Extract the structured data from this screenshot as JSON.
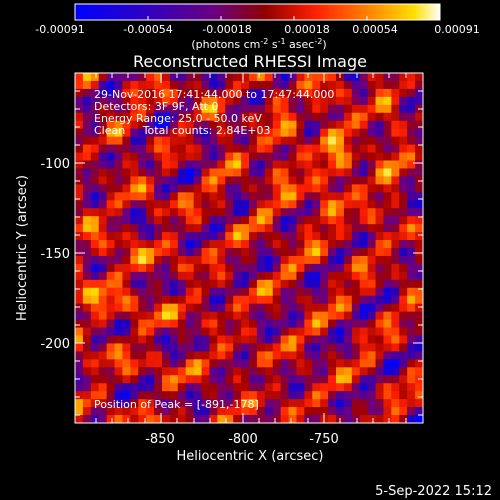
{
  "colorbar": {
    "tick_labels": [
      "-0.00091",
      "-0.00054",
      "-0.00018",
      "0.00018",
      "0.00054",
      "0.00091"
    ],
    "units_parts": [
      "(photons cm",
      "-2",
      " s",
      "-1",
      " asec",
      "-2",
      ")"
    ]
  },
  "chart_data": {
    "type": "heatmap",
    "title": "Reconstructed RHESSI Image",
    "xlabel": "Heliocentric X (arcsec)",
    "ylabel": "Heliocentric Y (arcsec)",
    "xlim": [
      -896,
      -786
    ],
    "ylim": [
      -245,
      -65
    ],
    "x_tick_values": [
      -850,
      -800,
      -750
    ],
    "x_tick_labels": [
      "-850",
      "-800",
      "-750"
    ],
    "y_tick_values": [
      -100,
      -150,
      -200
    ],
    "y_tick_labels": [
      "-100",
      "-150",
      "-200"
    ],
    "color_range": [
      -0.00091,
      0.00091
    ],
    "colormap": [
      "#0000ff",
      "#2000c0",
      "#6a0080",
      "#a00000",
      "#ff2000",
      "#ff8000",
      "#ffe000",
      "#ffffff"
    ],
    "annotations": [
      "29-Nov-2016 17:41:44.000 to 17:47:44.000",
      "Detectors: 3F 9F, Att 0",
      "Energy Range: 25.0 - 50.0 keV",
      "Clean     Total counts: 2.84E+03"
    ],
    "peak_text": "Position of Peak = [-891,-178]"
  },
  "timestamp": "5-Sep-2022 15:12"
}
